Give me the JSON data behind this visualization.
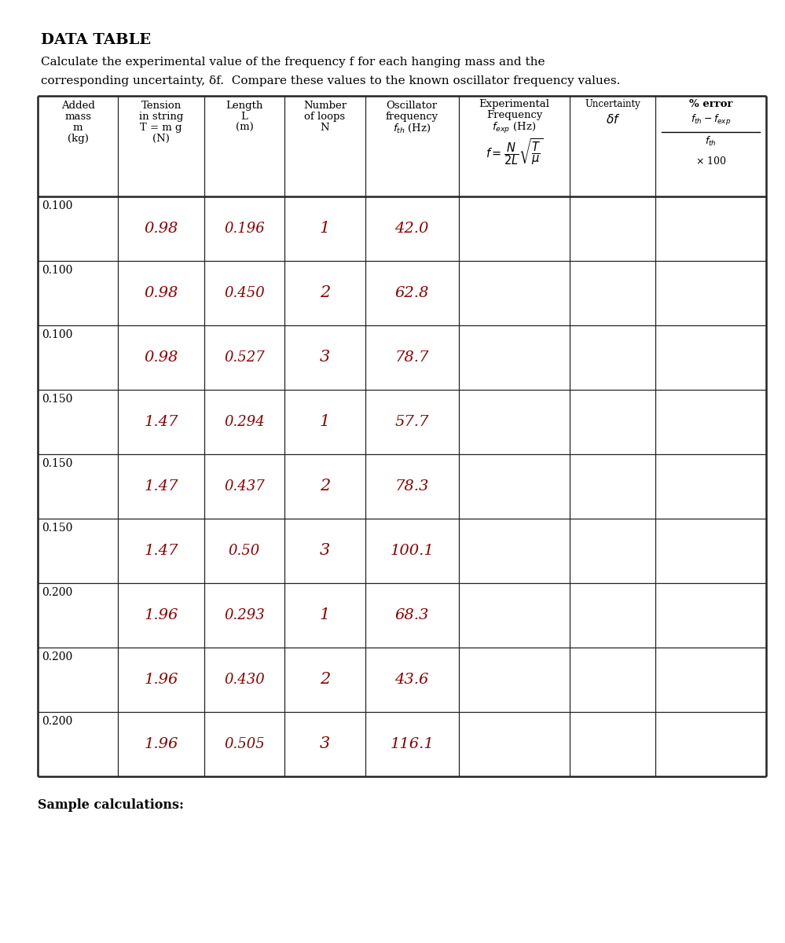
{
  "title": "DATA TABLE",
  "subtitle1": "Calculate the experimental value of the frequency f for each hanging mass and the",
  "subtitle2": "corresponding uncertainty, δf.  Compare these values to the known oscillator frequency values.",
  "handwritten_color": "#8B0000",
  "sample_calc_label": "Sample calculations:",
  "background_color": "#ffffff",
  "handwritten_data": [
    [
      "0.98",
      "0.196",
      "1",
      "42.0"
    ],
    [
      "0.98",
      "0.450",
      "2",
      "62.8"
    ],
    [
      "0.98",
      "0.527",
      "3",
      "78.7"
    ],
    [
      "1.47",
      "0.294",
      "1",
      "57.7"
    ],
    [
      "1.47",
      "0.437",
      "2",
      "78.3"
    ],
    [
      "1.47",
      "0.50",
      "3",
      "100.1"
    ],
    [
      "1.96",
      "0.293",
      "1",
      "68.3"
    ],
    [
      "1.96",
      "0.430",
      "2",
      "43.6"
    ],
    [
      "1.96",
      "0.505",
      "3",
      "116.1"
    ]
  ],
  "mass_labels": [
    "0.100",
    "0.100",
    "0.100",
    "0.150",
    "0.150",
    "0.150",
    "0.200",
    "0.200",
    "0.200"
  ],
  "col_weights": [
    1.05,
    1.12,
    1.05,
    1.05,
    1.22,
    1.45,
    1.12,
    1.44
  ]
}
